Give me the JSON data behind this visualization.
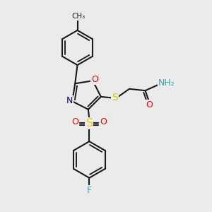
{
  "background_color": "#ebebeb",
  "bond_color": "#1a1a1a",
  "bond_width": 1.5,
  "atom_colors": {
    "O": "#ff0000",
    "N": "#0000cc",
    "S_sulfonyl": "#ffcc00",
    "S_thio": "#cccc00",
    "F": "#33aaaa",
    "NH2": "#33aaaa",
    "C": "#1a1a1a"
  },
  "font_size_atom": 9,
  "figsize": [
    3.0,
    3.0
  ],
  "dpi": 100,
  "xlim": [
    0,
    10
  ],
  "ylim": [
    0,
    10
  ]
}
